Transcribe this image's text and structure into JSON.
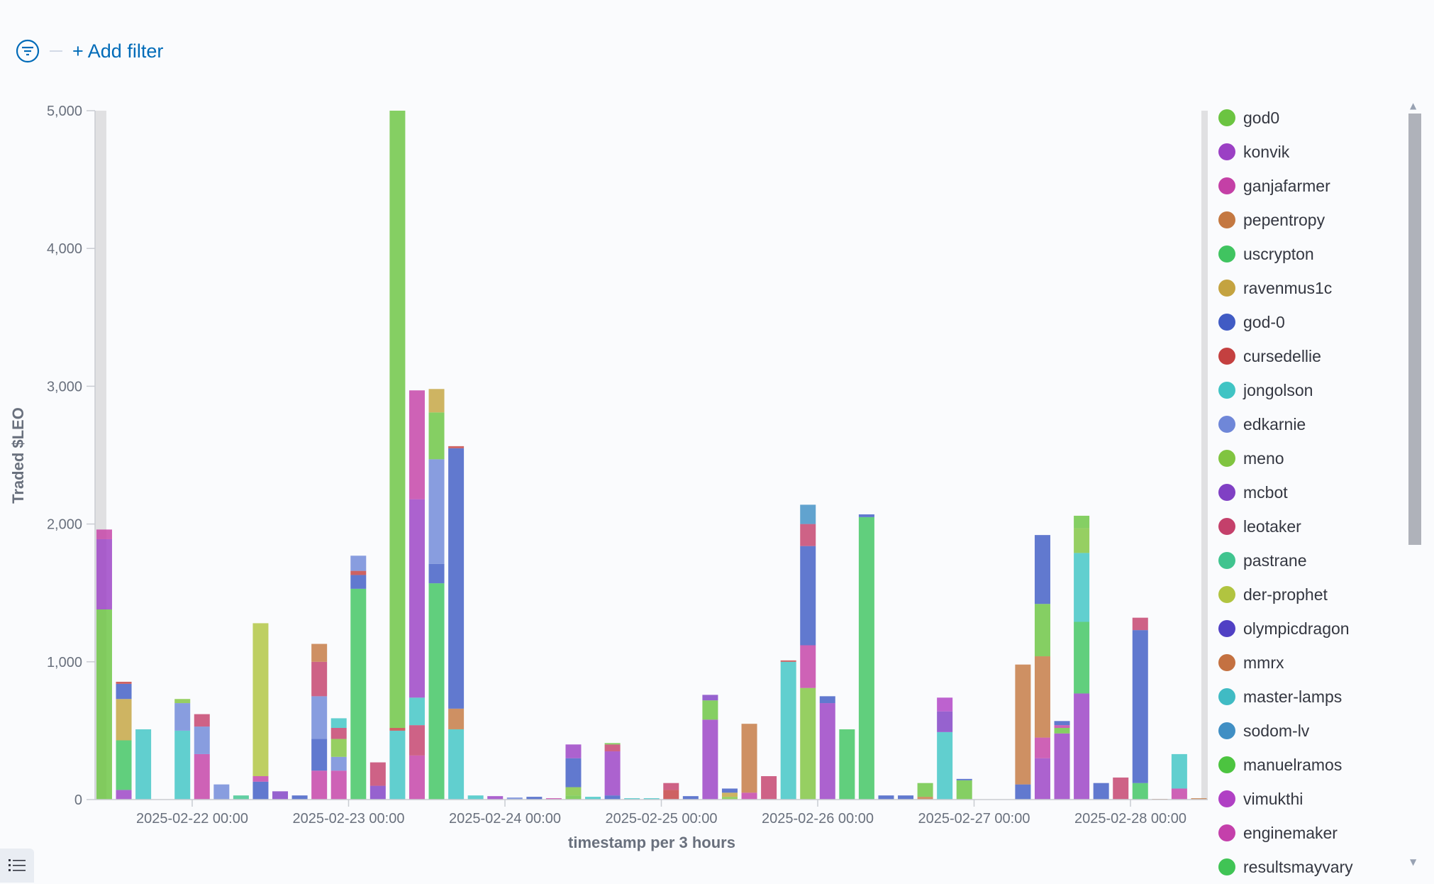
{
  "filter": {
    "add_filter_label": "+ Add filter"
  },
  "colors": {
    "god0": "#6bc441",
    "konvik": "#9b40c4",
    "ganjafarmer": "#c440a6",
    "pepentropy": "#c47841",
    "uscrypton": "#40c460",
    "ravenmus1c": "#c4a340",
    "god-0": "#405bc4",
    "cursedellie": "#c44040",
    "jongolson": "#40c4c4",
    "edkarnie": "#6f87d8",
    "meno": "#80c440",
    "mcbot": "#8040c4",
    "leotaker": "#c4406b",
    "pastrane": "#40c48f",
    "der-prophet": "#b1c440",
    "olympicdragon": "#5040c4",
    "mmrx": "#c47141",
    "master-lamps": "#40bbc4",
    "sodom-lv": "#408fc4",
    "manuelramos": "#4cc440",
    "vimukthi": "#b040c4",
    "enginemaker": "#c440ab",
    "resultsmayvary": "#40c455"
  },
  "chart_data": {
    "type": "bar",
    "stacked": true,
    "ylabel": "Traded $LEO",
    "xlabel": "timestamp per 3 hours",
    "ylim": [
      0,
      5000
    ],
    "yticks": [
      "0",
      "1,000",
      "2,000",
      "3,000",
      "4,000",
      "5,000"
    ],
    "ytick_values": [
      0,
      1000,
      2000,
      3000,
      4000,
      5000
    ],
    "xticks": [
      "2025-02-22 00:00",
      "2025-02-23 00:00",
      "2025-02-24 00:00",
      "2025-02-25 00:00",
      "2025-02-26 00:00",
      "2025-02-27 00:00",
      "2025-02-28 00:00"
    ],
    "first_bucket": "2025-02-21 09:00",
    "interval_hours": 3,
    "legend_position": "right",
    "series": [
      "god0",
      "konvik",
      "ganjafarmer",
      "pepentropy",
      "uscrypton",
      "ravenmus1c",
      "god-0",
      "cursedellie",
      "jongolson",
      "edkarnie",
      "meno",
      "mcbot",
      "leotaker",
      "pastrane",
      "der-prophet",
      "olympicdragon",
      "mmrx",
      "master-lamps",
      "sodom-lv",
      "manuelramos",
      "vimukthi",
      "enginemaker",
      "resultsmayvary"
    ],
    "buckets": [
      [
        [
          0,
          1380
        ],
        [
          1,
          510
        ],
        [
          2,
          70
        ]
      ],
      [
        [
          1,
          70
        ],
        [
          4,
          360
        ],
        [
          5,
          300
        ],
        [
          6,
          110
        ],
        [
          7,
          15
        ]
      ],
      [
        [
          8,
          510
        ]
      ],
      [],
      [
        [
          8,
          500
        ],
        [
          9,
          200
        ],
        [
          10,
          30
        ]
      ],
      [
        [
          2,
          330
        ],
        [
          9,
          200
        ],
        [
          12,
          90
        ]
      ],
      [
        [
          9,
          110
        ]
      ],
      [
        [
          13,
          30
        ]
      ],
      [
        [
          6,
          130
        ],
        [
          2,
          40
        ],
        [
          14,
          1110
        ]
      ],
      [
        [
          11,
          60
        ]
      ],
      [
        [
          6,
          30
        ]
      ],
      [
        [
          2,
          210
        ],
        [
          6,
          230
        ],
        [
          9,
          310
        ],
        [
          12,
          250
        ],
        [
          3,
          130
        ]
      ],
      [
        [
          2,
          210
        ],
        [
          9,
          100
        ],
        [
          10,
          130
        ],
        [
          12,
          80
        ],
        [
          8,
          70
        ]
      ],
      [
        [
          4,
          1530
        ],
        [
          6,
          100
        ],
        [
          7,
          30
        ],
        [
          9,
          110
        ]
      ],
      [
        [
          11,
          100
        ],
        [
          12,
          170
        ]
      ],
      [
        [
          8,
          500
        ],
        [
          7,
          20
        ],
        [
          0,
          4480
        ]
      ],
      [
        [
          2,
          320
        ],
        [
          12,
          220
        ],
        [
          8,
          200
        ],
        [
          1,
          1440
        ],
        [
          2,
          790
        ]
      ],
      [
        [
          4,
          1570
        ],
        [
          6,
          140
        ],
        [
          9,
          760
        ],
        [
          0,
          340
        ],
        [
          5,
          170
        ]
      ],
      [
        [
          8,
          510
        ],
        [
          3,
          150
        ],
        [
          6,
          1890
        ],
        [
          7,
          15
        ]
      ],
      [
        [
          8,
          30
        ]
      ],
      [
        [
          1,
          25
        ]
      ],
      [
        [
          9,
          15
        ]
      ],
      [
        [
          6,
          20
        ]
      ],
      [
        [
          2,
          10
        ]
      ],
      [
        [
          0,
          30
        ],
        [
          10,
          60
        ],
        [
          6,
          210
        ],
        [
          1,
          100
        ]
      ],
      [
        [
          8,
          20
        ]
      ],
      [
        [
          6,
          30
        ],
        [
          1,
          320
        ],
        [
          12,
          50
        ],
        [
          0,
          10
        ]
      ],
      [
        [
          8,
          10
        ]
      ],
      [
        [
          8,
          10
        ]
      ],
      [
        [
          7,
          70
        ],
        [
          12,
          50
        ]
      ],
      [
        [
          6,
          25
        ]
      ],
      [
        [
          1,
          580
        ],
        [
          0,
          140
        ],
        [
          11,
          40
        ]
      ],
      [
        [
          10,
          20
        ],
        [
          5,
          30
        ],
        [
          6,
          30
        ]
      ],
      [
        [
          2,
          50
        ],
        [
          3,
          500
        ]
      ],
      [
        [
          12,
          170
        ]
      ],
      [
        [
          8,
          1000
        ],
        [
          7,
          10
        ]
      ],
      [
        [
          10,
          810
        ],
        [
          2,
          310
        ],
        [
          6,
          720
        ],
        [
          12,
          160
        ],
        [
          18,
          140
        ]
      ],
      [
        [
          1,
          700
        ],
        [
          6,
          50
        ]
      ],
      [
        [
          4,
          510
        ]
      ],
      [
        [
          4,
          2050
        ],
        [
          6,
          20
        ]
      ],
      [
        [
          6,
          30
        ]
      ],
      [
        [
          6,
          30
        ]
      ],
      [
        [
          3,
          20
        ],
        [
          0,
          100
        ]
      ],
      [
        [
          8,
          490
        ],
        [
          11,
          150
        ],
        [
          20,
          100
        ]
      ],
      [
        [
          0,
          140
        ],
        [
          6,
          10
        ]
      ],
      [],
      [],
      [
        [
          6,
          110
        ],
        [
          3,
          870
        ]
      ],
      [
        [
          1,
          300
        ],
        [
          2,
          150
        ],
        [
          3,
          590
        ],
        [
          0,
          380
        ],
        [
          6,
          500
        ]
      ],
      [
        [
          1,
          480
        ],
        [
          0,
          40
        ],
        [
          2,
          20
        ],
        [
          6,
          30
        ]
      ],
      [
        [
          1,
          770
        ],
        [
          4,
          520
        ],
        [
          8,
          500
        ],
        [
          10,
          180
        ],
        [
          0,
          90
        ]
      ],
      [
        [
          6,
          120
        ]
      ],
      [
        [
          12,
          160
        ]
      ],
      [
        [
          4,
          120
        ],
        [
          6,
          1110
        ],
        [
          12,
          90
        ]
      ],
      [
        [
          3,
          5
        ]
      ],
      [
        [
          2,
          80
        ],
        [
          8,
          250
        ]
      ],
      [
        [
          3,
          10
        ]
      ]
    ]
  }
}
